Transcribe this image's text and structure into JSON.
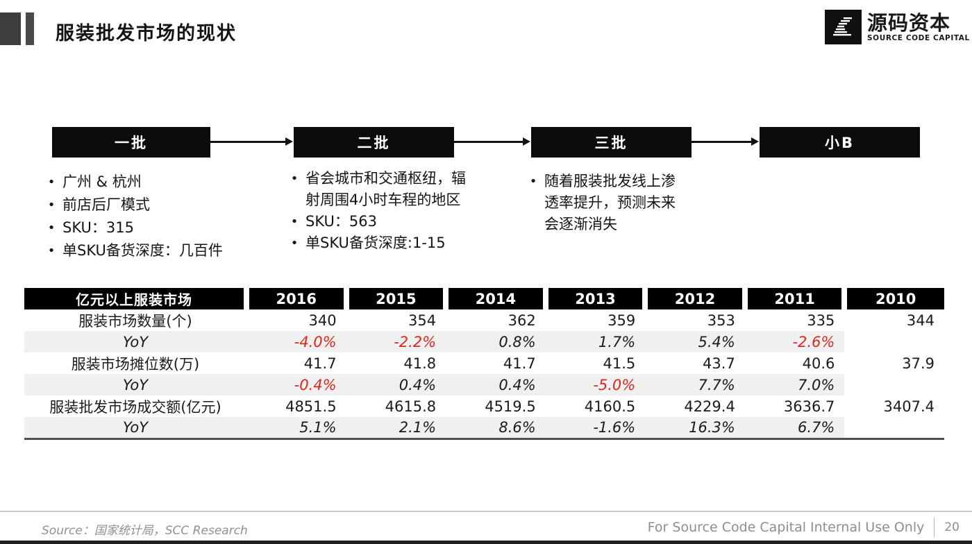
{
  "header": {
    "title": "服装批发市场的现状",
    "logo": {
      "name_cn": "源码资本",
      "name_en": "SOURCE CODE CAPITAL"
    }
  },
  "flow": {
    "stages": [
      {
        "label": "一批",
        "bullets": [
          "广州 & 杭州",
          "前店后厂模式",
          "SKU：315",
          "单SKU备货深度：几百件"
        ]
      },
      {
        "label": "二批",
        "bullets": [
          "省会城市和交通枢纽，辐射周围4小时车程的地区",
          "SKU：563",
          "单SKU备货深度:1-15"
        ]
      },
      {
        "label": "三批",
        "bullets": [
          "随着服装批发线上渗透率提升，预测未来会逐渐消失"
        ]
      },
      {
        "label": "小B",
        "bullets": []
      }
    ]
  },
  "chart_data": {
    "type": "table",
    "title": "亿元以上服装市场",
    "columns": [
      "亿元以上服装市场",
      "2016",
      "2015",
      "2014",
      "2013",
      "2012",
      "2011",
      "2010"
    ],
    "rows": [
      {
        "label": "服装市场数量(个)",
        "yoy": false,
        "values": [
          "340",
          "354",
          "362",
          "359",
          "353",
          "335",
          "344"
        ],
        "red": [
          false,
          false,
          false,
          false,
          false,
          false,
          false
        ]
      },
      {
        "label": "YoY",
        "yoy": true,
        "values": [
          "-4.0%",
          "-2.2%",
          "0.8%",
          "1.7%",
          "5.4%",
          "-2.6%",
          ""
        ],
        "red": [
          true,
          true,
          false,
          false,
          false,
          true,
          false
        ]
      },
      {
        "label": "服装市场摊位数(万)",
        "yoy": false,
        "values": [
          "41.7",
          "41.8",
          "41.7",
          "41.5",
          "43.7",
          "40.6",
          "37.9"
        ],
        "red": [
          false,
          false,
          false,
          false,
          false,
          false,
          false
        ]
      },
      {
        "label": "YoY",
        "yoy": true,
        "values": [
          "-0.4%",
          "0.4%",
          "0.4%",
          "-5.0%",
          "7.7%",
          "7.0%",
          ""
        ],
        "red": [
          true,
          false,
          false,
          true,
          false,
          false,
          false
        ]
      },
      {
        "label": "服装批发市场成交额(亿元)",
        "yoy": false,
        "values": [
          "4851.5",
          "4615.8",
          "4519.5",
          "4160.5",
          "4229.4",
          "3636.7",
          "3407.4"
        ],
        "red": [
          false,
          false,
          false,
          false,
          false,
          false,
          false
        ]
      },
      {
        "label": "YoY",
        "yoy": true,
        "values": [
          "5.1%",
          "2.1%",
          "8.6%",
          "-1.6%",
          "16.3%",
          "6.7%",
          ""
        ],
        "red": [
          false,
          false,
          false,
          false,
          false,
          false,
          false
        ]
      }
    ]
  },
  "footer": {
    "source": "Source：国家统计局，SCC Research",
    "notice": "For Source Code Capital Internal Use Only",
    "page": "20"
  },
  "colors": {
    "accent_red": "#e0261c",
    "header_bg": "#000000",
    "stripe": "#f0f0f0"
  }
}
